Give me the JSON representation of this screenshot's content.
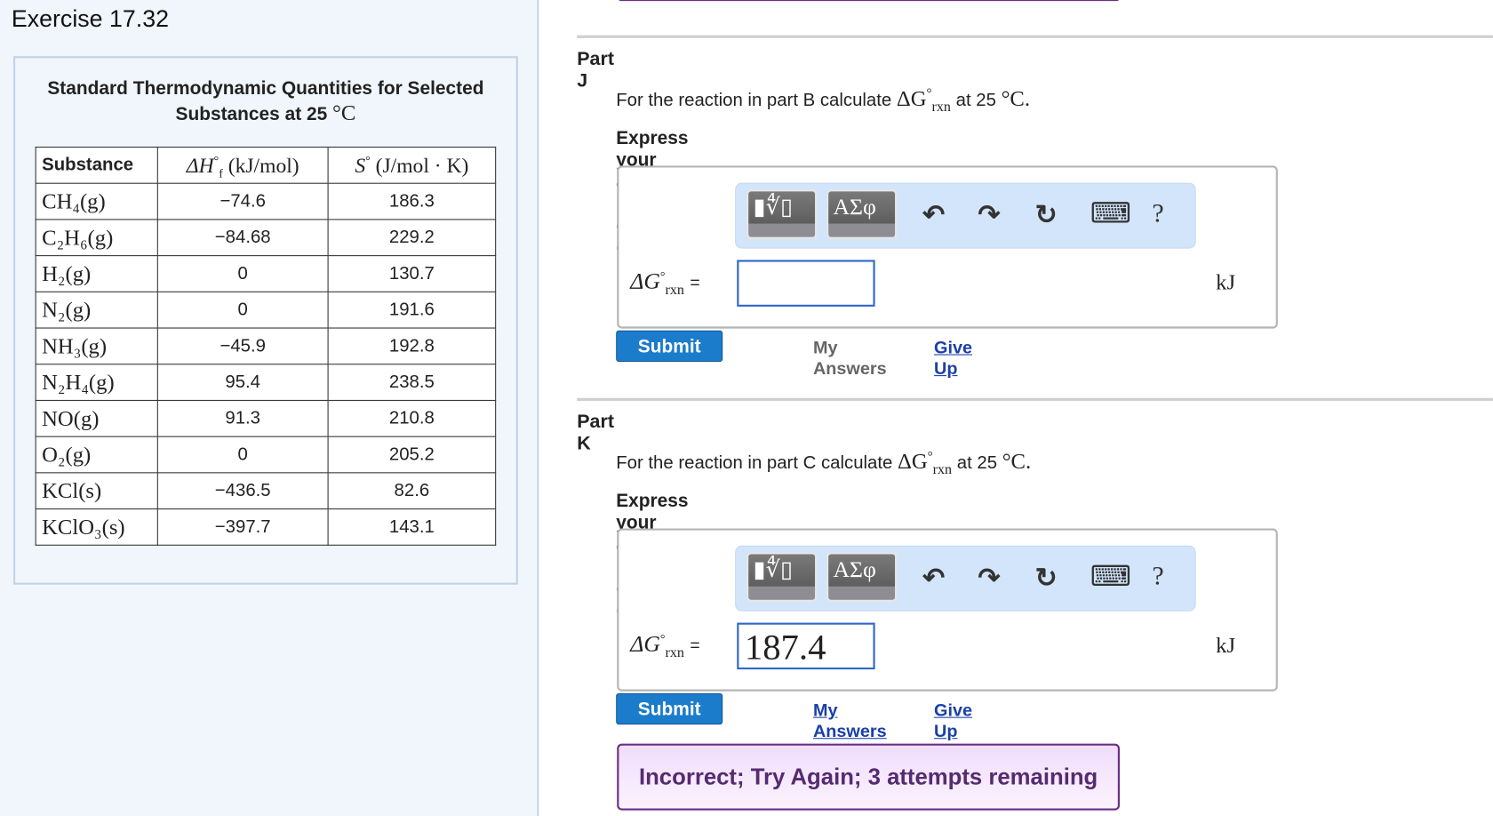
{
  "exercise_title": "Exercise 17.32",
  "table": {
    "title_line1": "Standard Thermodynamic Quantities for Selected",
    "title_line2": "Substances at 25",
    "title_unit": "°C",
    "headers": {
      "substance": "Substance",
      "dh": {
        "symbol": "ΔH",
        "sup": "°",
        "sub": "f",
        "unit": "(kJ/mol)"
      },
      "s": {
        "symbol": "S",
        "sup": "°",
        "unit": "(J/mol · K)"
      }
    },
    "rows": [
      {
        "substance": "CH₄(g)",
        "dh": "−74.6",
        "s": "186.3"
      },
      {
        "substance": "C₂H₆(g)",
        "dh": "−84.68",
        "s": "229.2"
      },
      {
        "substance": "H₂(g)",
        "dh": "0",
        "s": "130.7"
      },
      {
        "substance": "N₂(g)",
        "dh": "0",
        "s": "191.6"
      },
      {
        "substance": "NH₃(g)",
        "dh": "−45.9",
        "s": "192.8"
      },
      {
        "substance": "N₂H₄(g)",
        "dh": "95.4",
        "s": "238.5"
      },
      {
        "substance": "NO(g)",
        "dh": "91.3",
        "s": "210.8"
      },
      {
        "substance": "O₂(g)",
        "dh": "0",
        "s": "205.2"
      },
      {
        "substance": "KCl(s)",
        "dh": "−436.5",
        "s": "82.6"
      },
      {
        "substance": "KClO₃(s)",
        "dh": "−397.7",
        "s": "143.1"
      }
    ]
  },
  "colors": {
    "submit": "#1c7ccc",
    "link": "#1a3fa8",
    "feedback_border": "#6a2e85",
    "toolbar": "#d2e5fb"
  },
  "parts": [
    {
      "title": "Part J",
      "question_prefix": "For the reaction in part B calculate",
      "question_symbol": "ΔG",
      "question_sup": "°",
      "question_sub": "rxn",
      "question_suffix": "at 25",
      "question_unit": "°C.",
      "instruction": "Express your answer using one decimal place.",
      "toolbar": {
        "templates": "▮∜▯",
        "greek": "AΣφ",
        "undo": "↶",
        "redo": "↷",
        "reset": "↻",
        "keyboard": "⌨",
        "help": "?"
      },
      "label": {
        "symbol": "ΔG",
        "sup": "°",
        "sub": "rxn",
        "eq": "="
      },
      "input_value": "",
      "unit": "kJ",
      "submit": "Submit",
      "my_answers": "My Answers",
      "give_up": "Give Up"
    },
    {
      "title": "Part K",
      "question_prefix": "For the reaction in part C calculate",
      "question_symbol": "ΔG",
      "question_sup": "°",
      "question_sub": "rxn",
      "question_suffix": "at 25",
      "question_unit": "°C.",
      "instruction": "Express your answer using one decimal place.",
      "toolbar": {
        "templates": "▮∜▯",
        "greek": "AΣφ",
        "undo": "↶",
        "redo": "↷",
        "reset": "↻",
        "keyboard": "⌨",
        "help": "?"
      },
      "label": {
        "symbol": "ΔG",
        "sup": "°",
        "sub": "rxn",
        "eq": "="
      },
      "input_value": "187.4",
      "unit": "kJ",
      "submit": "Submit",
      "my_answers": "My Answers",
      "give_up": "Give Up",
      "feedback": "Incorrect; Try Again; 3 attempts remaining"
    }
  ]
}
